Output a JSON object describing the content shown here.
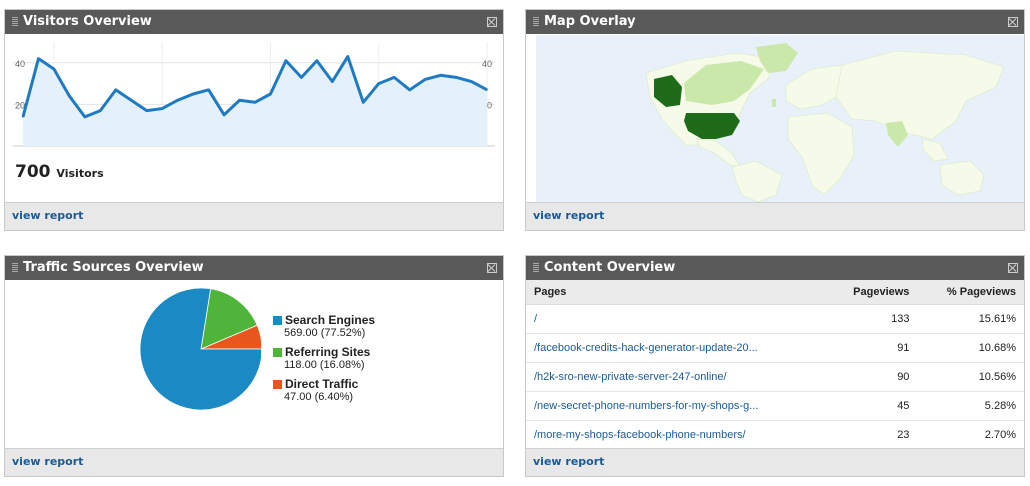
{
  "visitors": {
    "title": "Visitors Overview",
    "count": "700",
    "count_label": "Visitors",
    "footer_link": "view report",
    "chart_data": {
      "type": "area",
      "x": [
        1,
        2,
        3,
        4,
        5,
        6,
        7,
        8,
        9,
        10,
        11,
        12,
        13,
        14,
        15,
        16,
        17,
        18,
        19,
        20,
        21,
        22,
        23,
        24,
        25,
        26,
        27,
        28,
        29,
        30,
        31
      ],
      "values": [
        14,
        42,
        37,
        24,
        14,
        17,
        27,
        22,
        17,
        18,
        22,
        25,
        27,
        15,
        22,
        21,
        25,
        41,
        33,
        41,
        31,
        43,
        21,
        30,
        33,
        27,
        32,
        34,
        33,
        31,
        27
      ],
      "yticks": [
        "40",
        "20"
      ],
      "ylim": [
        0,
        50
      ],
      "color": "#1f7ac4",
      "fill": "#e4f0fa"
    }
  },
  "map": {
    "title": "Map Overlay",
    "footer_link": "view report",
    "colors": {
      "ocean": "#e8f1f9",
      "land": "#f5fbe8",
      "low": "#c9e8a9",
      "high": "#1e6b1a"
    }
  },
  "traffic": {
    "title": "Traffic Sources Overview",
    "footer_link": "view report",
    "chart_data": {
      "type": "pie",
      "slices": [
        {
          "name": "Search Engines",
          "value": 569.0,
          "label": "569.00 (77.52%)",
          "color": "#1b8ac4"
        },
        {
          "name": "Referring Sites",
          "value": 118.0,
          "label": "118.00 (16.08%)",
          "color": "#4fb53a"
        },
        {
          "name": "Direct Traffic",
          "value": 47.0,
          "label": "47.00 (6.40%)",
          "color": "#e8561e"
        }
      ]
    }
  },
  "content": {
    "title": "Content Overview",
    "footer_link": "view report",
    "headers": [
      "Pages",
      "Pageviews",
      "% Pageviews"
    ],
    "rows": [
      {
        "page": "/",
        "views": "133",
        "pct": "15.61%"
      },
      {
        "page": "/facebook-credits-hack-generator-update-20...",
        "views": "91",
        "pct": "10.68%"
      },
      {
        "page": "/h2k-sro-new-private-server-247-online/",
        "views": "90",
        "pct": "10.56%"
      },
      {
        "page": "/new-secret-phone-numbers-for-my-shops-g...",
        "views": "45",
        "pct": "5.28%"
      },
      {
        "page": "/more-my-shops-facebook-phone-numbers/",
        "views": "23",
        "pct": "2.70%"
      }
    ]
  }
}
